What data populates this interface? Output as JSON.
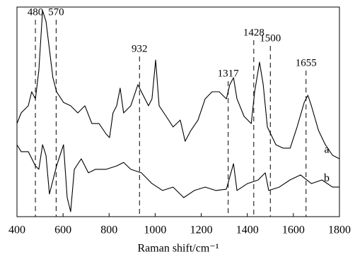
{
  "chart_data": {
    "type": "line",
    "x_label": "Raman shift/cm⁻¹",
    "xlim": [
      400,
      1800
    ],
    "xticks": [
      400,
      600,
      800,
      1000,
      1200,
      1400,
      1600,
      1800
    ],
    "ylim": [
      0,
      100
    ],
    "reference_lines": [
      480,
      570,
      932,
      1317,
      1428,
      1500,
      1655
    ],
    "series": [
      {
        "name": "a",
        "color": "#000000",
        "x": [
          400,
          418,
          449,
          464,
          480,
          495,
          511,
          526,
          541,
          556,
          572,
          602,
          633,
          664,
          695,
          725,
          756,
          787,
          802,
          817,
          833,
          848,
          863,
          894,
          925,
          940,
          971,
          986,
          1002,
          1017,
          1048,
          1078,
          1109,
          1130,
          1155,
          1186,
          1217,
          1247,
          1278,
          1309,
          1324,
          1340,
          1355,
          1386,
          1417,
          1432,
          1453,
          1469,
          1487,
          1524,
          1555,
          1586,
          1616,
          1647,
          1663,
          1678,
          1709,
          1739,
          1770,
          1800
        ],
        "values": [
          44.4,
          49.5,
          52.9,
          59.6,
          56.2,
          69.7,
          98.3,
          93.3,
          79.8,
          66.3,
          59.6,
          54.5,
          52.9,
          49.5,
          52.9,
          44.4,
          44.4,
          39.4,
          37.7,
          49.5,
          52.9,
          61.3,
          49.5,
          52.9,
          63.0,
          59.6,
          52.9,
          56.2,
          74.7,
          52.9,
          47.8,
          42.8,
          46.1,
          36.0,
          41.1,
          46.1,
          56.2,
          59.6,
          59.6,
          56.2,
          63.0,
          66.3,
          56.2,
          47.8,
          44.4,
          59.6,
          73.7,
          63.0,
          42.8,
          34.3,
          32.7,
          32.7,
          42.8,
          54.5,
          57.9,
          52.9,
          41.1,
          34.3,
          29.3,
          27.6
        ]
      },
      {
        "name": "b",
        "color": "#000000",
        "x": [
          400,
          418,
          449,
          480,
          495,
          511,
          526,
          541,
          572,
          602,
          618,
          633,
          649,
          679,
          710,
          741,
          787,
          833,
          863,
          894,
          940,
          986,
          1032,
          1078,
          1124,
          1170,
          1217,
          1263,
          1309,
          1340,
          1355,
          1401,
          1447,
          1478,
          1493,
          1539,
          1585,
          1631,
          1678,
          1724,
          1770,
          1800
        ],
        "values": [
          34.3,
          31.0,
          31.0,
          24.2,
          22.6,
          34.3,
          29.3,
          10.8,
          24.2,
          34.3,
          9.1,
          2.4,
          22.6,
          27.6,
          20.9,
          22.6,
          22.6,
          24.2,
          25.9,
          22.6,
          20.9,
          15.8,
          12.5,
          14.1,
          9.1,
          12.5,
          14.1,
          12.5,
          13.1,
          25.3,
          12.5,
          15.8,
          17.5,
          20.9,
          12.5,
          14.1,
          17.5,
          19.9,
          15.8,
          17.5,
          14.1,
          14.1
        ]
      }
    ]
  }
}
